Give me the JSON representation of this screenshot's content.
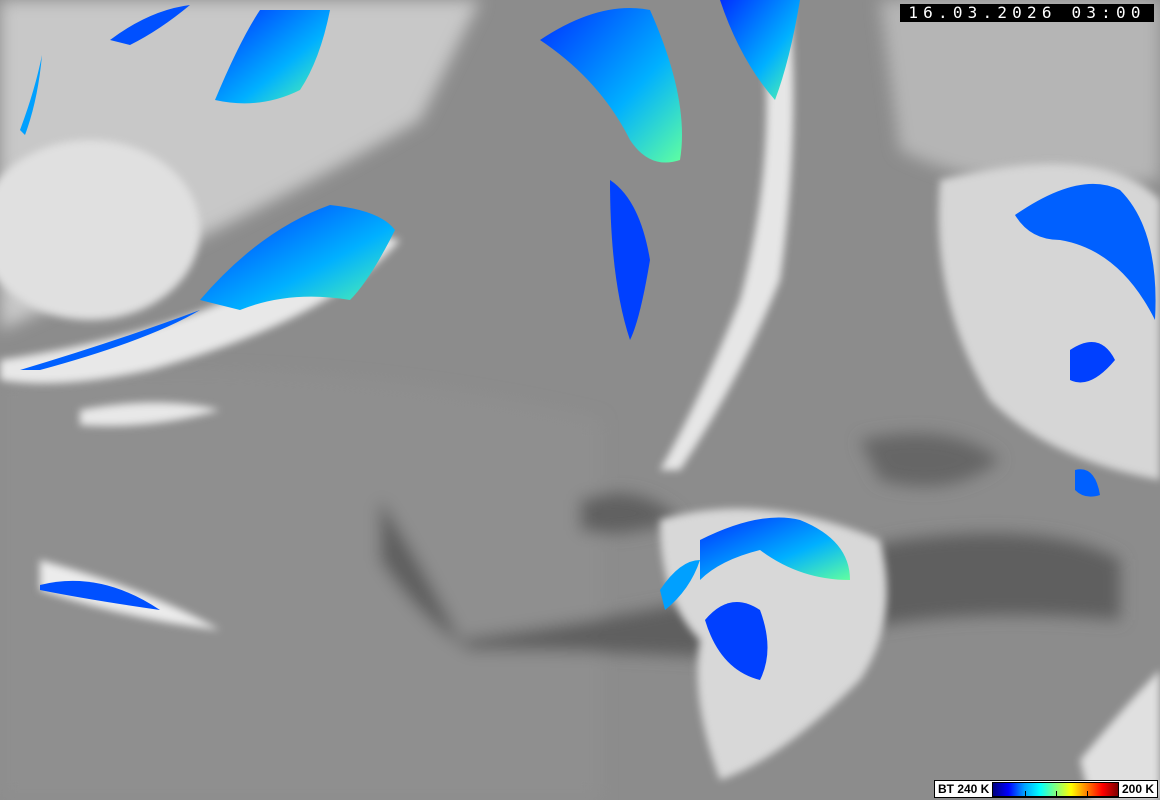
{
  "timestamp": "16.03.2026 03:00",
  "legend": {
    "left_label": "BT 240 K",
    "right_label": "200 K",
    "colors": [
      "#000080",
      "#0000ff",
      "#00a0ff",
      "#00ffff",
      "#80ff80",
      "#ffff00",
      "#ff8000",
      "#ff0000",
      "#800000"
    ]
  },
  "colors": {
    "background_gray": "#8a8a8a",
    "cloud_white": "#f0f0f0",
    "sea_dark": "#5e5e5e"
  }
}
